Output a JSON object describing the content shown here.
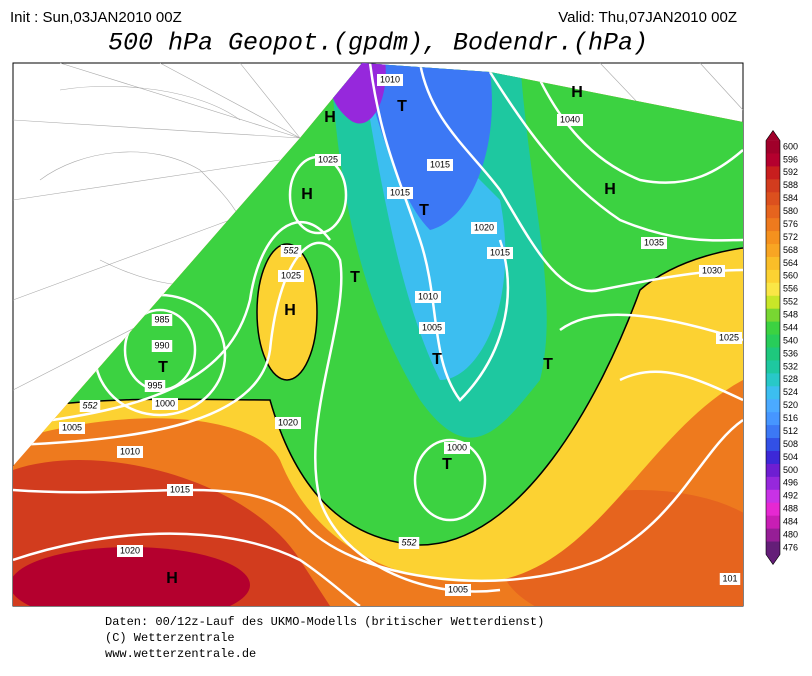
{
  "header": {
    "init": "Init : Sun,03JAN2010 00Z",
    "valid": "Valid: Thu,07JAN2010 00Z",
    "title": "500 hPa Geopot.(gpdm), Bodendr.(hPa)"
  },
  "map_labels": [
    "1010",
    "T",
    "H",
    "1025",
    "1015",
    "1015",
    "H",
    "T",
    "1020",
    "1015",
    "H",
    "1040",
    "H",
    "1035",
    "1030",
    "1025",
    "552",
    "1025",
    "H",
    "T",
    "1010",
    "1005",
    "985",
    "T",
    "990",
    "995",
    "552",
    "1000",
    "1005",
    "T",
    "T",
    "1010",
    "1020",
    "1000",
    "T",
    "1015",
    "552",
    "1020",
    "1005",
    "H",
    "101"
  ],
  "colorbar": {
    "levels": [
      600,
      596,
      592,
      588,
      584,
      580,
      576,
      572,
      568,
      564,
      560,
      556,
      552,
      548,
      544,
      540,
      536,
      532,
      528,
      524,
      520,
      516,
      512,
      508,
      504,
      500,
      496,
      492,
      488,
      484,
      480,
      476
    ],
    "colors": [
      "#a0002a",
      "#b4002e",
      "#c81e1e",
      "#d23c1e",
      "#dc501e",
      "#e6641e",
      "#ee7a1e",
      "#f5911e",
      "#f8a523",
      "#fabe28",
      "#fcd232",
      "#fae646",
      "#c8e628",
      "#78d732",
      "#3cd241",
      "#28cd5a",
      "#1ec87d",
      "#1ec8a0",
      "#28c8c8",
      "#3cbef0",
      "#4baaff",
      "#4696ff",
      "#3c78f5",
      "#3250e6",
      "#3c28d7",
      "#6e1ed2",
      "#9628dc",
      "#c832e6",
      "#e628d2",
      "#c81eb4",
      "#961e96",
      "#641e78"
    ]
  },
  "footer": [
    "Daten: 00/12z-Lauf des UKMO-Modells (britischer Wetterdienst)",
    "(C) Wetterzentrale",
    "www.wetterzentrale.de"
  ]
}
